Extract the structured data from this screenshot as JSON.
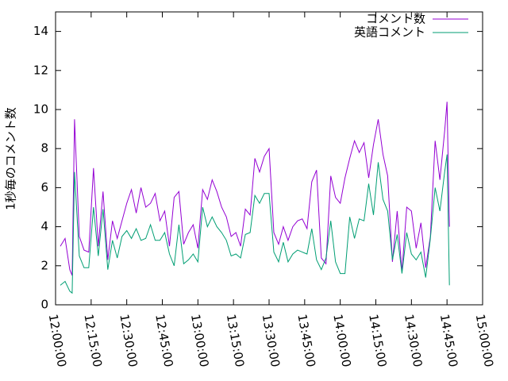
{
  "chart_data": {
    "type": "line",
    "ylabel": "1秒毎のコメント数",
    "x": [
      "12:02:00",
      "12:04:00",
      "12:06:00",
      "12:07:00",
      "12:08:00",
      "12:10:00",
      "12:12:00",
      "12:14:00",
      "12:16:00",
      "12:18:00",
      "12:20:00",
      "12:22:00",
      "12:24:00",
      "12:26:00",
      "12:28:00",
      "12:30:00",
      "12:32:00",
      "12:34:00",
      "12:36:00",
      "12:38:00",
      "12:40:00",
      "12:42:00",
      "12:44:00",
      "12:46:00",
      "12:48:00",
      "12:50:00",
      "12:52:00",
      "12:54:00",
      "12:56:00",
      "12:58:00",
      "13:00:00",
      "13:02:00",
      "13:04:00",
      "13:06:00",
      "13:08:00",
      "13:10:00",
      "13:12:00",
      "13:14:00",
      "13:16:00",
      "13:18:00",
      "13:20:00",
      "13:22:00",
      "13:24:00",
      "13:26:00",
      "13:28:00",
      "13:30:00",
      "13:32:00",
      "13:34:00",
      "13:36:00",
      "13:38:00",
      "13:40:00",
      "13:42:00",
      "13:44:00",
      "13:46:00",
      "13:48:00",
      "13:50:00",
      "13:52:00",
      "13:54:00",
      "13:56:00",
      "13:58:00",
      "14:00:00",
      "14:02:00",
      "14:04:00",
      "14:06:00",
      "14:08:00",
      "14:10:00",
      "14:12:00",
      "14:14:00",
      "14:16:00",
      "14:18:00",
      "14:20:00",
      "14:22:00",
      "14:24:00",
      "14:26:00",
      "14:28:00",
      "14:30:00",
      "14:32:00",
      "14:34:00",
      "14:36:00",
      "14:38:00",
      "14:40:00",
      "14:42:00",
      "14:44:00",
      "14:45:00",
      "14:46:00"
    ],
    "series": [
      {
        "name": "コメント数",
        "color": "#9400d3",
        "values": [
          3.0,
          3.4,
          1.8,
          1.5,
          9.5,
          3.5,
          2.8,
          2.7,
          7.0,
          3.0,
          5.8,
          2.3,
          4.3,
          3.4,
          4.3,
          5.2,
          5.9,
          4.7,
          6.0,
          5.0,
          5.2,
          5.7,
          4.3,
          4.8,
          3.0,
          5.5,
          5.8,
          3.1,
          3.7,
          4.1,
          2.9,
          5.9,
          5.4,
          6.4,
          5.8,
          5.0,
          4.5,
          3.5,
          3.7,
          3.0,
          4.9,
          4.6,
          7.5,
          6.8,
          7.6,
          8.0,
          3.7,
          3.1,
          4.0,
          3.3,
          4.0,
          4.3,
          4.4,
          3.9,
          6.3,
          6.9,
          2.4,
          2.1,
          6.6,
          5.5,
          5.2,
          6.5,
          7.5,
          8.4,
          7.8,
          8.3,
          6.5,
          8.2,
          9.5,
          7.7,
          6.6,
          2.2,
          4.8,
          1.7,
          5.0,
          4.8,
          2.9,
          4.2,
          1.9,
          3.5,
          8.4,
          6.4,
          8.9,
          10.4,
          4.0
        ]
      },
      {
        "name": "英語コメント",
        "color": "#009e73",
        "values": [
          1.0,
          1.2,
          0.7,
          0.6,
          6.8,
          2.5,
          1.9,
          1.9,
          5.0,
          2.5,
          4.9,
          1.8,
          3.3,
          2.4,
          3.5,
          3.8,
          3.4,
          3.9,
          3.3,
          3.4,
          4.1,
          3.3,
          3.3,
          3.7,
          2.6,
          2.0,
          4.1,
          2.1,
          2.3,
          2.6,
          2.2,
          5.0,
          4.0,
          4.5,
          4.0,
          3.7,
          3.3,
          2.5,
          2.6,
          2.4,
          3.6,
          3.7,
          5.6,
          5.2,
          5.7,
          5.7,
          2.7,
          2.2,
          3.2,
          2.2,
          2.6,
          2.8,
          2.7,
          2.6,
          3.9,
          2.3,
          1.8,
          2.4,
          4.3,
          2.2,
          1.6,
          1.6,
          4.5,
          3.4,
          4.4,
          4.3,
          6.2,
          4.6,
          7.3,
          5.4,
          4.8,
          2.3,
          3.6,
          1.6,
          3.7,
          2.6,
          2.3,
          2.7,
          1.4,
          3.4,
          6.0,
          4.8,
          6.8,
          7.7,
          1.0
        ]
      }
    ],
    "xlim": [
      "12:00:00",
      "15:00:00"
    ],
    "xticks": [
      "12:00:00",
      "12:15:00",
      "12:30:00",
      "12:45:00",
      "13:00:00",
      "13:15:00",
      "13:30:00",
      "13:45:00",
      "14:00:00",
      "14:15:00",
      "14:30:00",
      "14:45:00",
      "15:00:00"
    ],
    "ylim": [
      0,
      15
    ],
    "yticks": [
      0,
      2,
      4,
      6,
      8,
      10,
      12,
      14
    ],
    "legend": "top-right"
  }
}
